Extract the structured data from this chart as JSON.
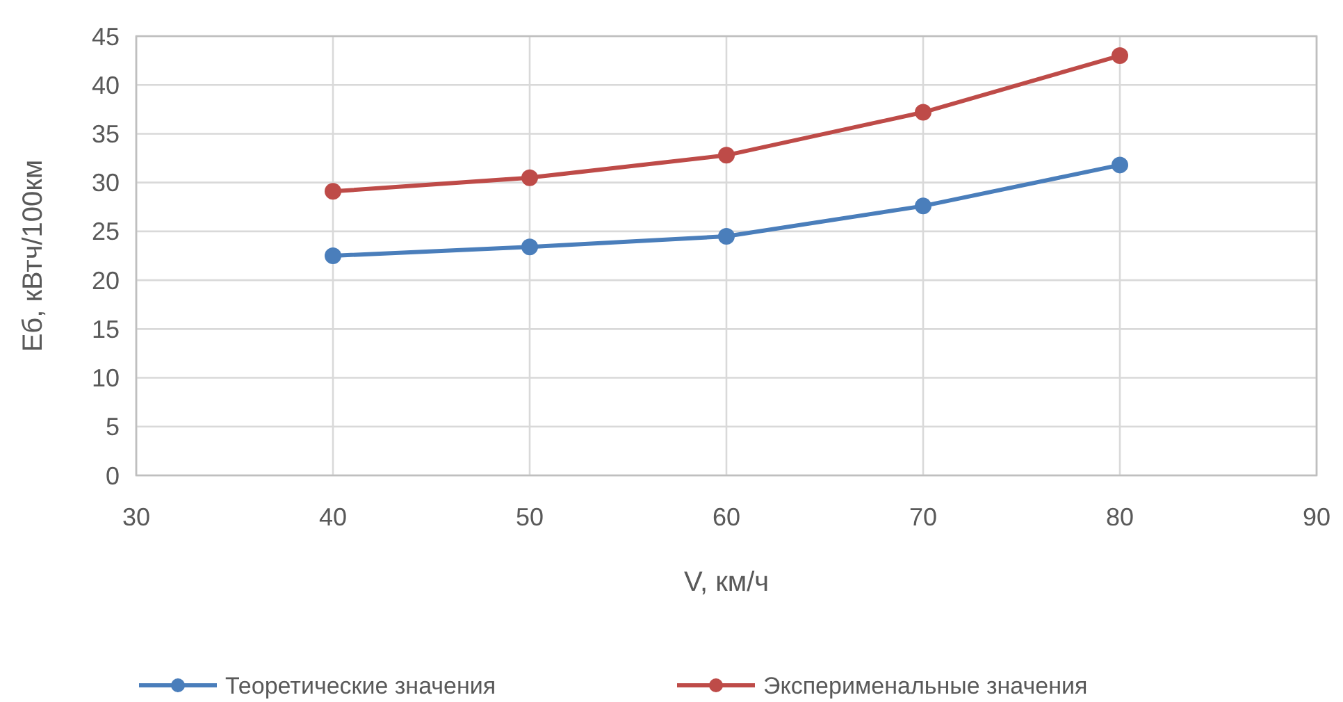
{
  "chart_data": {
    "type": "line",
    "xlabel": "V, км/ч",
    "ylabel": "Еб, кВтч/100км",
    "x": [
      40,
      50,
      60,
      70,
      80
    ],
    "series": [
      {
        "name": "Теоретические значения",
        "color": "#4a7ebb",
        "values": [
          22.5,
          23.4,
          24.5,
          27.6,
          31.8
        ]
      },
      {
        "name": "Эксперименальные значения",
        "color": "#be4b48",
        "values": [
          29.1,
          30.5,
          32.8,
          37.2,
          43.0
        ]
      }
    ],
    "xlim": [
      30,
      90
    ],
    "xticks": [
      30,
      40,
      50,
      60,
      70,
      80,
      90
    ],
    "ylim": [
      0,
      45
    ],
    "yticks": [
      0,
      5,
      10,
      15,
      20,
      25,
      30,
      35,
      40,
      45
    ],
    "grid": true,
    "legend": "bottom",
    "marker": "circle",
    "line_style": "solid"
  }
}
